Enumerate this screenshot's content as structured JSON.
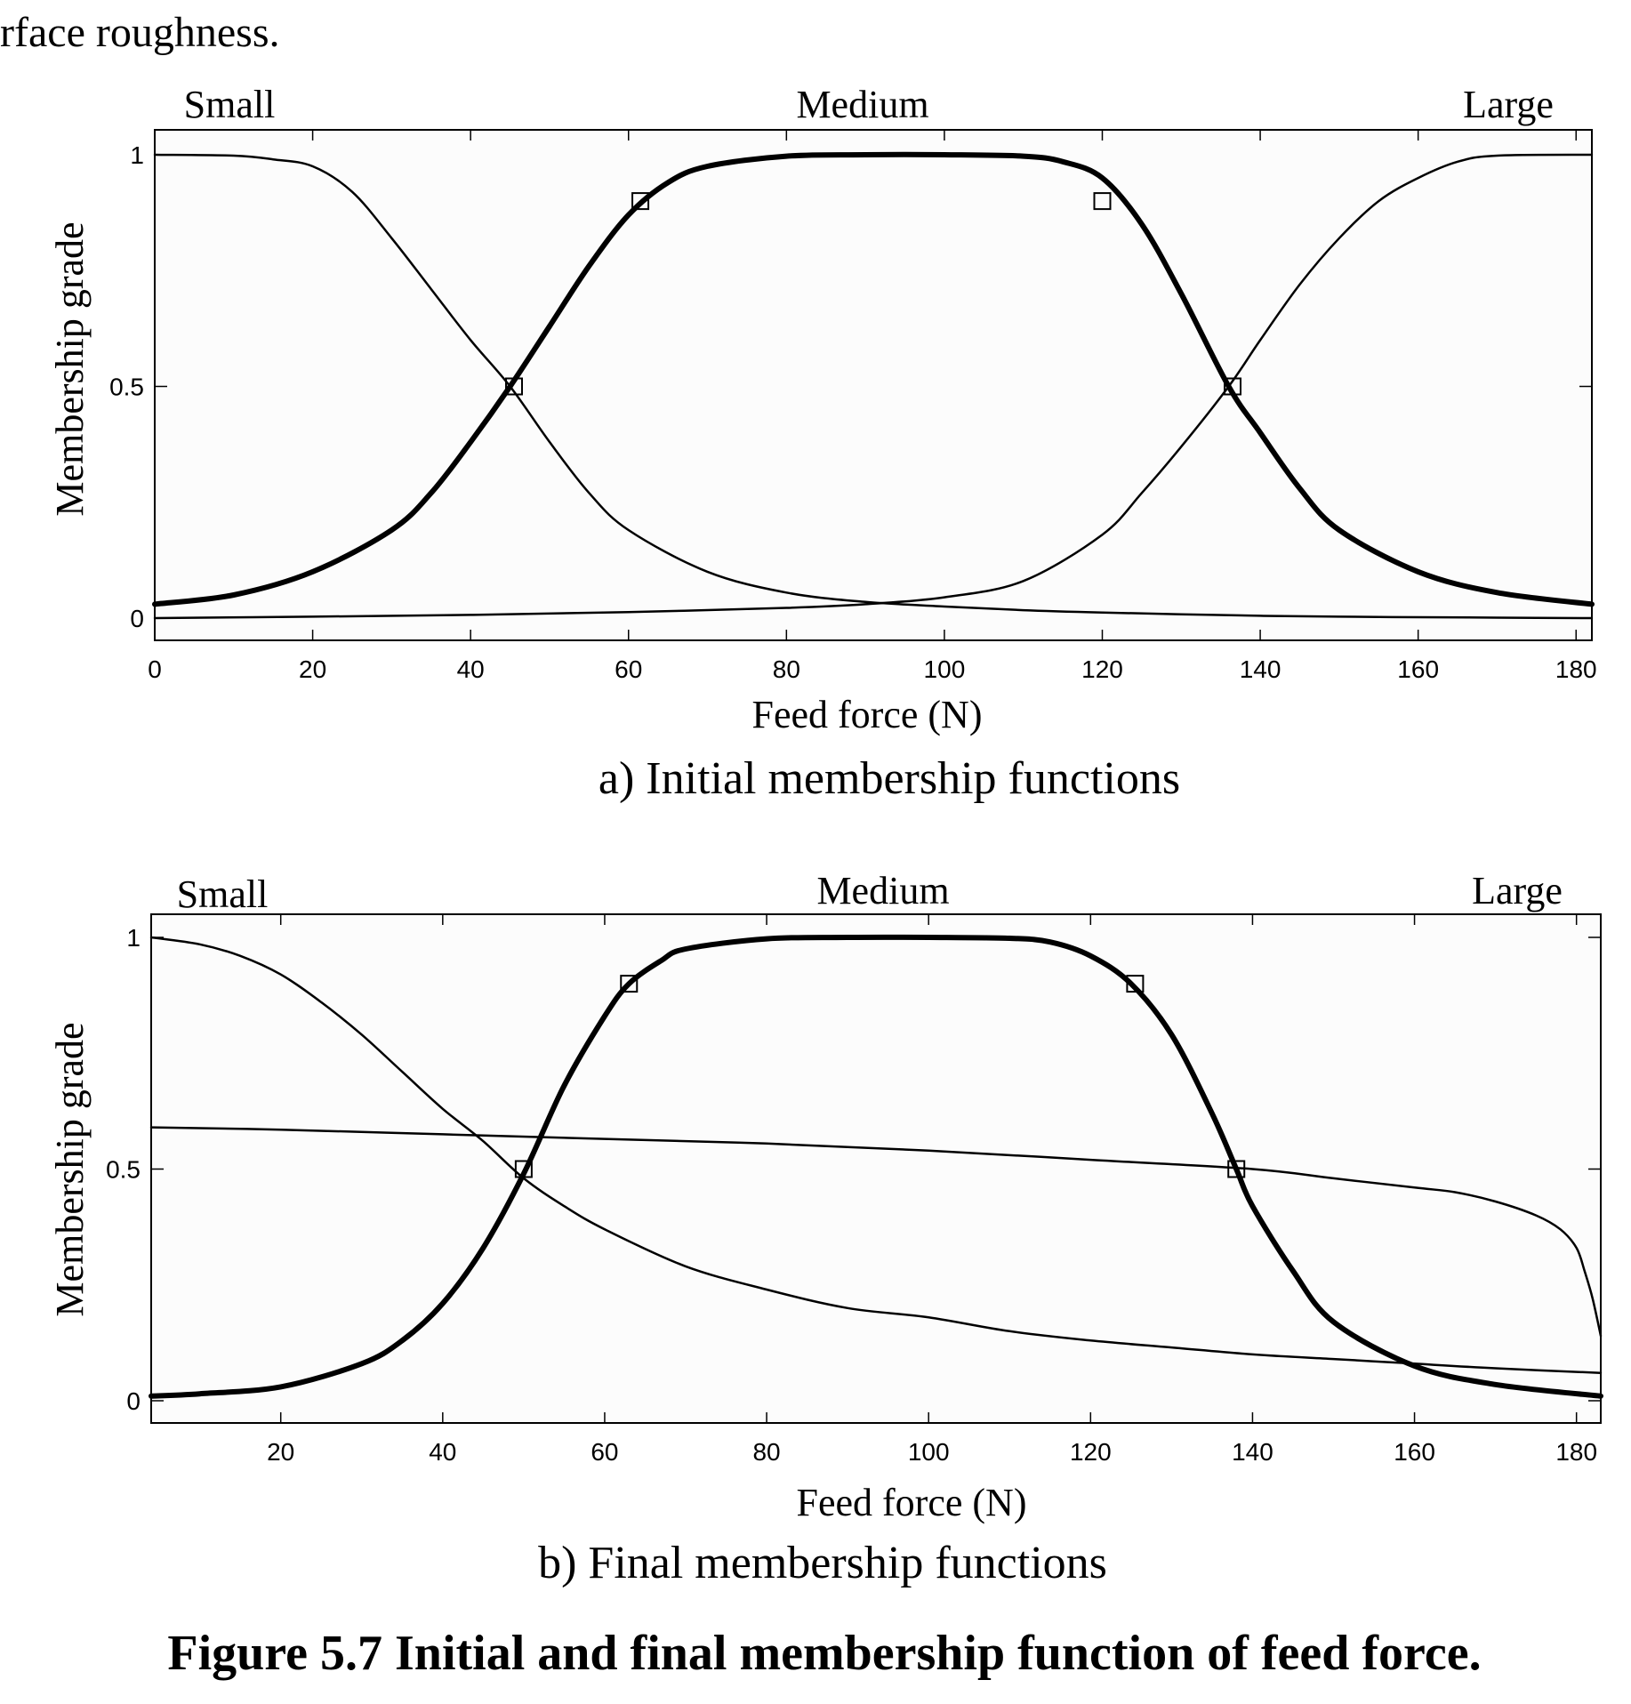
{
  "intro_text": "rface roughness.",
  "caption": "Figure 5.7 Initial and final membership function of feed force.",
  "colors": {
    "ink": "#000000",
    "plot_bg": "#fcfcfc",
    "page_bg": "#ffffff"
  },
  "chart_data": [
    {
      "type": "line",
      "subcaption": "a)  Initial membership functions",
      "xlabel": "Feed force (N)",
      "ylabel": "Membership grade",
      "xlim": [
        0,
        182
      ],
      "ylim": [
        0,
        1
      ],
      "xticks": [
        0,
        20,
        40,
        60,
        80,
        100,
        120,
        140,
        160,
        180
      ],
      "yticks": [
        0,
        0.5,
        1
      ],
      "ytick_labels": [
        "0",
        "0.5",
        "1"
      ],
      "mf_labels": [
        "Small",
        "Medium",
        "Large"
      ],
      "series": [
        {
          "name": "Small",
          "bold": false,
          "x": [
            0,
            10,
            15,
            20,
            25,
            30,
            35,
            40,
            45,
            50,
            55,
            60,
            70,
            80,
            90,
            100,
            110,
            120,
            130,
            140,
            150,
            160,
            170,
            182
          ],
          "y": [
            1.0,
            0.998,
            0.99,
            0.975,
            0.92,
            0.82,
            0.71,
            0.6,
            0.5,
            0.38,
            0.27,
            0.19,
            0.1,
            0.055,
            0.035,
            0.025,
            0.017,
            0.012,
            0.008,
            0.005,
            0.003,
            0.002,
            0.001,
            0.0
          ]
        },
        {
          "name": "Medium",
          "bold": true,
          "x": [
            0,
            10,
            20,
            30,
            35,
            40,
            45,
            50,
            55,
            60,
            65,
            70,
            80,
            90,
            100,
            110,
            115,
            120,
            125,
            130,
            136,
            140,
            145,
            150,
            160,
            170,
            182
          ],
          "y": [
            0.03,
            0.05,
            0.1,
            0.19,
            0.27,
            0.38,
            0.5,
            0.63,
            0.76,
            0.87,
            0.94,
            0.975,
            0.997,
            1.0,
            1.0,
            0.997,
            0.985,
            0.95,
            0.85,
            0.7,
            0.5,
            0.4,
            0.28,
            0.19,
            0.1,
            0.055,
            0.03
          ]
        },
        {
          "name": "Large",
          "bold": false,
          "x": [
            0,
            20,
            40,
            60,
            80,
            90,
            100,
            110,
            120,
            125,
            130,
            136,
            140,
            145,
            150,
            155,
            160,
            165,
            170,
            182
          ],
          "y": [
            0.0,
            0.003,
            0.007,
            0.013,
            0.022,
            0.03,
            0.045,
            0.08,
            0.18,
            0.27,
            0.37,
            0.5,
            0.6,
            0.72,
            0.82,
            0.9,
            0.95,
            0.985,
            0.998,
            1.0
          ]
        }
      ],
      "markers": [
        {
          "x": 45.5,
          "y": 0.5
        },
        {
          "x": 61.5,
          "y": 0.9
        },
        {
          "x": 120,
          "y": 0.9
        },
        {
          "x": 136.5,
          "y": 0.5
        }
      ]
    },
    {
      "type": "line",
      "subcaption": "b) Final membership functions",
      "xlabel": "Feed force (N)",
      "ylabel": "Membership grade",
      "xlim": [
        4,
        183
      ],
      "ylim": [
        0,
        1
      ],
      "xticks": [
        20,
        40,
        60,
        80,
        100,
        120,
        140,
        160,
        180
      ],
      "yticks": [
        0,
        0.5,
        1
      ],
      "ytick_labels": [
        "0",
        "0.5",
        "1"
      ],
      "mf_labels": [
        "Small",
        "Medium",
        "Large"
      ],
      "series": [
        {
          "name": "Small",
          "bold": false,
          "x": [
            4,
            10,
            15,
            20,
            25,
            30,
            35,
            40,
            45,
            50,
            55,
            60,
            70,
            80,
            90,
            100,
            110,
            120,
            130,
            140,
            150,
            160,
            170,
            183
          ],
          "y": [
            1.0,
            0.985,
            0.96,
            0.92,
            0.86,
            0.79,
            0.71,
            0.63,
            0.56,
            0.48,
            0.42,
            0.37,
            0.29,
            0.24,
            0.2,
            0.18,
            0.15,
            0.13,
            0.115,
            0.1,
            0.09,
            0.08,
            0.07,
            0.06
          ]
        },
        {
          "name": "Medium",
          "bold": true,
          "x": [
            4,
            10,
            20,
            30,
            35,
            40,
            45,
            50,
            55,
            60,
            63,
            67,
            70,
            80,
            90,
            100,
            110,
            115,
            120,
            125,
            130,
            135,
            138,
            140,
            145,
            150,
            160,
            170,
            183
          ],
          "y": [
            0.01,
            0.015,
            0.03,
            0.08,
            0.13,
            0.21,
            0.33,
            0.49,
            0.68,
            0.83,
            0.9,
            0.95,
            0.975,
            0.997,
            1.0,
            1.0,
            0.998,
            0.99,
            0.96,
            0.9,
            0.79,
            0.62,
            0.5,
            0.42,
            0.28,
            0.17,
            0.075,
            0.035,
            0.01
          ]
        },
        {
          "name": "Large",
          "bold": false,
          "x": [
            4,
            20,
            40,
            60,
            80,
            100,
            120,
            140,
            150,
            160,
            165,
            170,
            175,
            178,
            180,
            181,
            182,
            183
          ],
          "y": [
            0.59,
            0.585,
            0.575,
            0.565,
            0.555,
            0.54,
            0.52,
            0.5,
            0.48,
            0.46,
            0.45,
            0.43,
            0.4,
            0.37,
            0.33,
            0.28,
            0.22,
            0.14
          ]
        }
      ],
      "markers": [
        {
          "x": 50,
          "y": 0.5
        },
        {
          "x": 63,
          "y": 0.9
        },
        {
          "x": 125.5,
          "y": 0.9
        },
        {
          "x": 138,
          "y": 0.5
        }
      ]
    }
  ]
}
